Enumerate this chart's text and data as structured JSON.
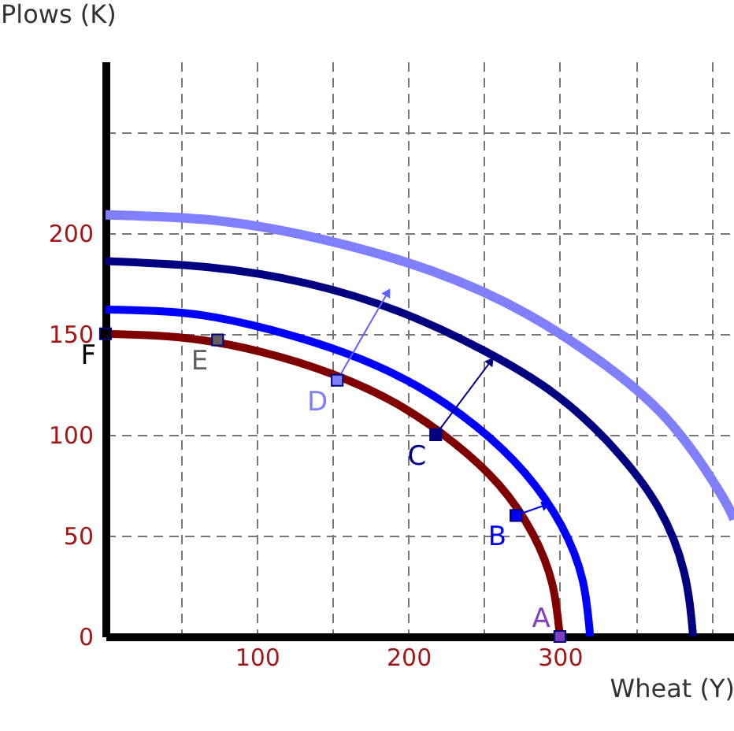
{
  "chart_data": {
    "type": "line",
    "xlabel": "Wheat (Y)",
    "ylabel": "Plows (K)",
    "xlim": [
      0,
      415
    ],
    "ylim": [
      0,
      285
    ],
    "xticks": [
      {
        "value": 50,
        "label": null
      },
      100,
      {
        "value": 150,
        "label": null
      },
      200,
      {
        "value": 250,
        "label": null
      },
      300,
      {
        "value": 350,
        "label": null
      },
      {
        "value": 400,
        "label": null
      }
    ],
    "yticks": [
      0,
      50,
      100,
      150,
      200,
      {
        "value": 250,
        "label": null
      }
    ],
    "grid": true,
    "series": [
      {
        "color": "#8080ff",
        "x": [
          0,
          75,
          148,
          216,
          278,
          331,
          374,
          406,
          415
        ],
        "values": [
          209,
          206,
          196,
          181,
          160,
          134,
          105,
          71,
          58
        ]
      },
      {
        "color": "#000080",
        "x": [
          0,
          68,
          133,
          194,
          249,
          297,
          336,
          365,
          382,
          388
        ],
        "values": [
          186,
          183,
          175,
          161,
          142,
          120,
          93,
          64,
          32,
          0
        ]
      },
      {
        "color": "#0000ff",
        "x": [
          0,
          56,
          109,
          160,
          206,
          245,
          277,
          301,
          315,
          320
        ],
        "values": [
          162,
          160,
          152,
          140,
          124,
          104,
          81,
          55,
          28,
          0
        ]
      },
      {
        "color": "#800000",
        "x": [
          0,
          52,
          103,
          150,
          193,
          230,
          260,
          282,
          295,
          300
        ],
        "values": [
          150,
          148,
          141,
          130,
          115,
          96,
          75,
          51,
          26,
          0
        ]
      },
      {
        "color": "#6060ff",
        "x": [
          153,
          186
        ],
        "values": [
          127,
          170
        ]
      },
      {
        "color": "#000080",
        "x": [
          218,
          254
        ],
        "values": [
          100,
          136
        ]
      },
      {
        "color": "#0000ff",
        "x": [
          271,
          290
        ],
        "values": [
          60,
          65
        ]
      },
      {
        "type": "scatter",
        "marker": "square",
        "x": [
          300,
          271,
          218,
          153,
          74,
          0
        ],
        "values": [
          0,
          60,
          100,
          127,
          147,
          150
        ],
        "colors": [
          "#7f3fbf",
          "#0000ff",
          "#000080",
          "#8080ff",
          "#606060",
          "#000000"
        ]
      }
    ],
    "annotations": [
      {
        "text": "A",
        "x": 300,
        "y": 0
      },
      {
        "text": "B",
        "x": 271,
        "y": 60
      },
      {
        "text": "C",
        "x": 218,
        "y": 100
      },
      {
        "text": "D",
        "x": 153,
        "y": 127
      },
      {
        "text": "E",
        "x": 74,
        "y": 147
      },
      {
        "text": "F",
        "x": 0,
        "y": 150
      }
    ]
  }
}
